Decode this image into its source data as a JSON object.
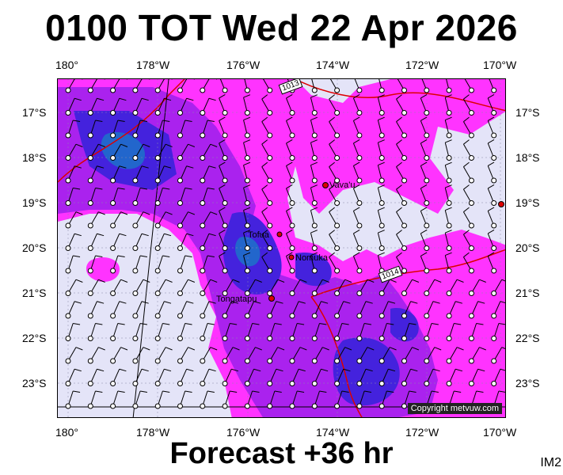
{
  "header": {
    "title": "0100 TOT Wed 22 Apr 2026"
  },
  "footer": {
    "forecast": "Forecast +36 hr",
    "image_tag": "IM2"
  },
  "map": {
    "copyright": "Copyright metvuw.com",
    "longitudes": [
      "180°",
      "178°W",
      "176°W",
      "174°W",
      "172°W",
      "170°W"
    ],
    "latitudes": [
      "17°S",
      "18°S",
      "19°S",
      "20°S",
      "21°S",
      "22°S",
      "23°S"
    ],
    "places": [
      "Vava'u",
      "Tofua",
      "Nomuka",
      "Tongatapu"
    ],
    "isobars": [
      "1013",
      "1014"
    ],
    "colors": {
      "background": "#e4e4f8",
      "rain_light": "#ff33ff",
      "rain_mid": "#aa22ee",
      "rain_heavy": "#4422dd",
      "rain_core": "#2266cc",
      "isobar": "#dd0000"
    }
  }
}
